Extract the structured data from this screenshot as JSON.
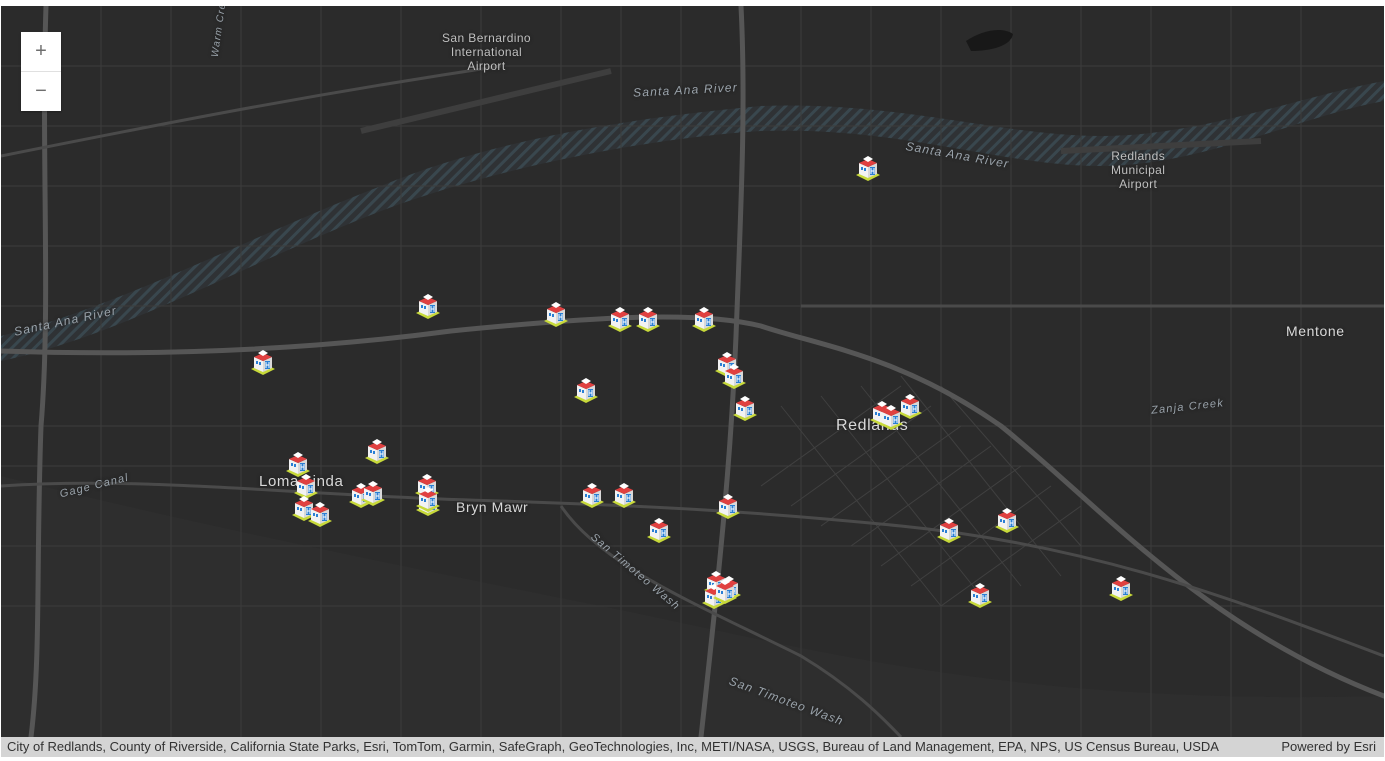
{
  "map": {
    "basemap_color": "#2b2b2b",
    "road_color": "#4a4a4a",
    "highway_color": "#5a5a5a",
    "river_stripe_color": "#3b4a52"
  },
  "zoom": {
    "in_label": "+",
    "out_label": "−"
  },
  "labels": {
    "san_bernardino_airport": "San Bernardino\nInternational\nAirport",
    "redlands_airport": "Redlands\nMunicipal\nAirport",
    "santa_ana_river_1": "Santa Ana River",
    "santa_ana_river_2": "Santa Ana River",
    "santa_ana_river_3": "Santa Ana River",
    "mentone": "Mentone",
    "redlands": "Redlands",
    "loma_linda": "Loma Linda",
    "bryn_mawr": "Bryn Mawr",
    "zanja_creek": "Zanja Creek",
    "gage_canal": "Gage Canal",
    "san_timoteo_wash_1": "San Timoteo Wash",
    "san_timoteo_wash_2": "San Timoteo Wash",
    "warm_creek": "Warm Creek"
  },
  "markers": {
    "icon": "hospital-building-icon",
    "count": 36
  },
  "attribution": {
    "text": "City of Redlands, County of Riverside, California State Parks, Esri, TomTom, Garmin, SafeGraph, GeoTechnologies, Inc, METI/NASA, USGS, Bureau of Land Management, EPA, NPS, US Census Bureau, USDA",
    "powered_by": "Powered by Esri"
  }
}
